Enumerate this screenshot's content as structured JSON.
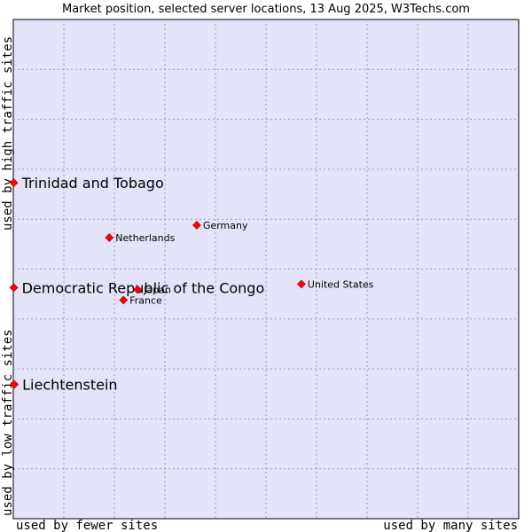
{
  "chart_data": {
    "type": "scatter",
    "title": "Market position, selected server locations, 13 Aug 2025, W3Techs.com",
    "xlabel_left": "used by fewer sites",
    "xlabel_right": "used by many sites",
    "ylabel_bottom": "used by low traffic sites",
    "ylabel_top": "used by high traffic sites",
    "xlim": [
      0,
      100
    ],
    "ylim": [
      0,
      100
    ],
    "grid": true,
    "marker_color": "#ff0000",
    "plot_background": "#e4e4f8",
    "points": [
      {
        "label": "Trinidad and Tobago",
        "x": 0.1,
        "y": 67.3,
        "emphasis": true
      },
      {
        "label": "Democratic Republic of the Congo",
        "x": 0.1,
        "y": 46.3,
        "emphasis": true
      },
      {
        "label": "Liechtenstein",
        "x": 0.2,
        "y": 26.9,
        "emphasis": true
      },
      {
        "label": "Germany",
        "x": 36.3,
        "y": 58.8,
        "emphasis": false
      },
      {
        "label": "Netherlands",
        "x": 19.0,
        "y": 56.3,
        "emphasis": false
      },
      {
        "label": "United States",
        "x": 57.0,
        "y": 47.0,
        "emphasis": false
      },
      {
        "label": "Japan",
        "x": 24.6,
        "y": 45.9,
        "emphasis": false
      },
      {
        "label": "France",
        "x": 21.8,
        "y": 43.8,
        "emphasis": false
      }
    ]
  }
}
